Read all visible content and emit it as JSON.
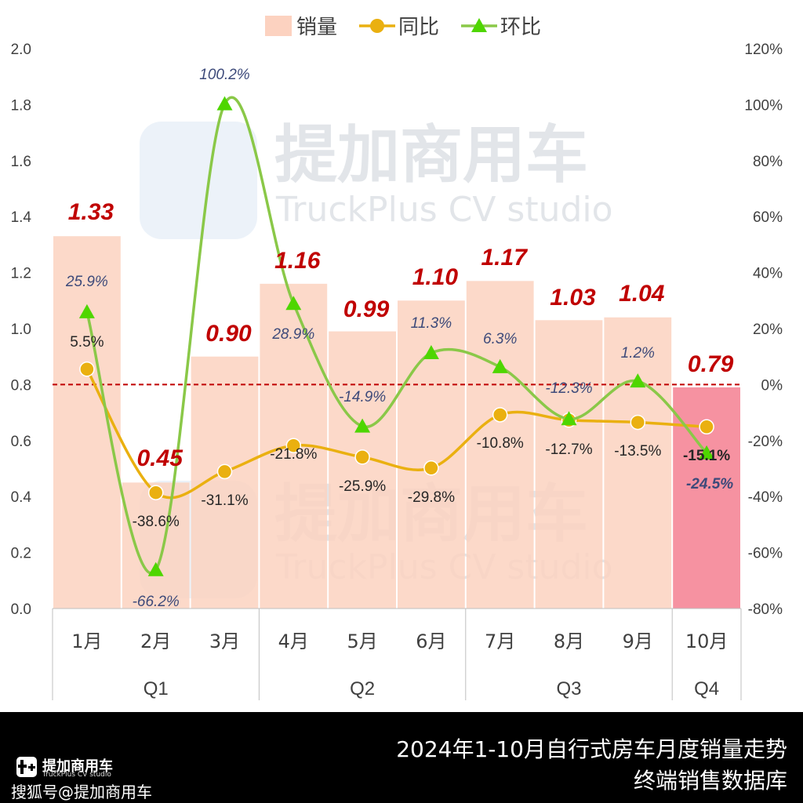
{
  "chart_data": {
    "type": "bar",
    "months": [
      "1月",
      "2月",
      "3月",
      "4月",
      "5月",
      "6月",
      "7月",
      "8月",
      "9月",
      "10月"
    ],
    "quarters": [
      {
        "label": "Q1",
        "start": 0,
        "end": 2
      },
      {
        "label": "Q2",
        "start": 3,
        "end": 5
      },
      {
        "label": "Q3",
        "start": 6,
        "end": 8
      },
      {
        "label": "Q4",
        "start": 9,
        "end": 9
      }
    ],
    "sales": [
      1.33,
      0.45,
      0.9,
      1.16,
      0.99,
      1.1,
      1.17,
      1.03,
      1.04,
      0.79
    ],
    "sales_labels": [
      "1.33",
      "0.45",
      "0.90",
      "1.16",
      "0.99",
      "1.10",
      "1.17",
      "1.03",
      "1.04",
      "0.79"
    ],
    "yoy": [
      5.5,
      -38.6,
      -31.1,
      -21.8,
      -25.9,
      -29.8,
      -10.8,
      -12.7,
      -13.5,
      -15.1
    ],
    "yoy_labels": [
      "5.5%",
      "-38.6%",
      "-31.1%",
      "-21.8%",
      "-25.9%",
      "-29.8%",
      "-10.8%",
      "-12.7%",
      "-13.5%",
      "-15.1%"
    ],
    "mom": [
      25.9,
      -66.2,
      100.2,
      28.9,
      -14.9,
      11.3,
      6.3,
      -12.3,
      1.2,
      -24.5
    ],
    "mom_labels": [
      "25.9%",
      "-66.2%",
      "100.2%",
      "28.9%",
      "-14.9%",
      "11.3%",
      "6.3%",
      "-12.3%",
      "1.2%",
      "-24.5%"
    ],
    "legend": [
      "销量",
      "同比",
      "环比"
    ],
    "legend_position": "top-center",
    "y_left": {
      "min": 0,
      "max": 2.0,
      "ticks": [
        "0.0",
        "0.2",
        "0.4",
        "0.6",
        "0.8",
        "1.0",
        "1.2",
        "1.4",
        "1.6",
        "1.8",
        "2.0"
      ]
    },
    "y_right": {
      "min": -80,
      "max": 120,
      "ticks": [
        "-80%",
        "-60%",
        "-40%",
        "-20%",
        "0%",
        "20%",
        "40%",
        "60%",
        "80%",
        "100%",
        "120%"
      ]
    },
    "highlight_index": 9,
    "colors": {
      "bar": "#fcd2c0",
      "bar_highlight": "#f68c9c",
      "yoy": "#eab010",
      "mom": "#8ac848",
      "mom_marker": "#4ed600",
      "sales_label": "#c00000",
      "mom_label": "#3d4a7a",
      "zero_line": "#c00000"
    }
  },
  "watermark": {
    "cn": "提加商用车",
    "en": "TruckPlus CV studio"
  },
  "footer": {
    "title": "2024年1-10月自行式房车月度销量走势",
    "subtitle": "终端销售数据库",
    "logo_name": "提加商用车",
    "logo_sub": "TruckPlus CV studio",
    "source": "搜狐号@提加商用车"
  }
}
